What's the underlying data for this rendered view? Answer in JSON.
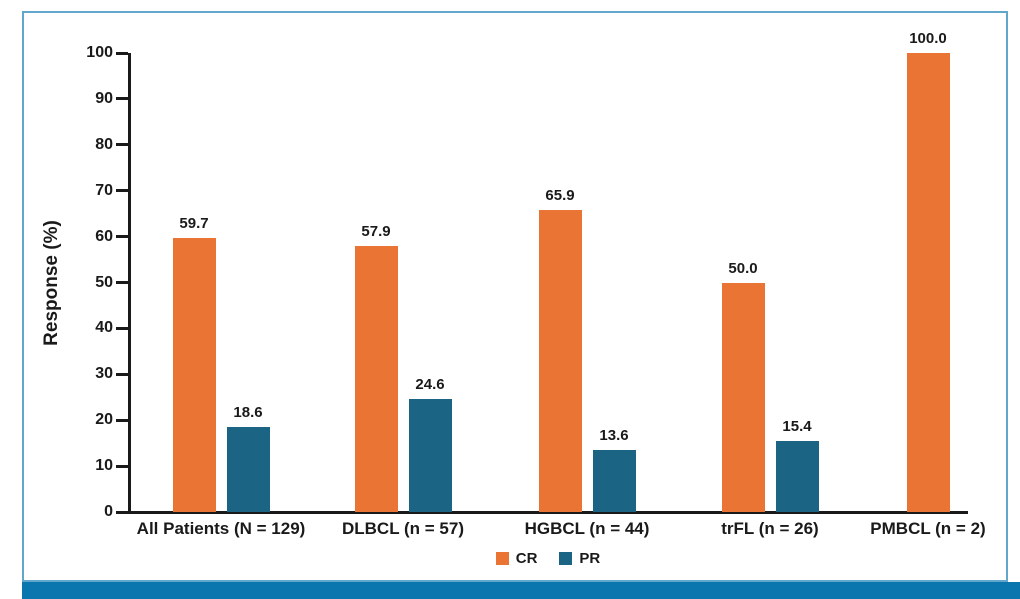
{
  "figure": {
    "background_color": "#FFFFFF",
    "border_color": "#63A6CC",
    "footer_bar_color": "#0B76AE",
    "axis_color": "#1A1A1A",
    "text_color": "#1A1A1A"
  },
  "chart_data": {
    "type": "bar",
    "title": "",
    "xlabel": "",
    "ylabel": "Response (%)",
    "ylim": [
      0,
      100
    ],
    "yticks": [
      0,
      10,
      20,
      30,
      40,
      50,
      60,
      70,
      80,
      90,
      100
    ],
    "grid": false,
    "legend_position": "bottom-center",
    "value_labels": true,
    "value_label_decimals": 1,
    "categories": [
      "All Patients (N = 129)",
      "DLBCL (n = 57)",
      "HGBCL (n = 44)",
      "trFL (n = 26)",
      "PMBCL (n = 2)"
    ],
    "series": [
      {
        "name": "CR",
        "color": "#E97433",
        "values": [
          59.7,
          57.9,
          65.9,
          50.0,
          100.0
        ]
      },
      {
        "name": "PR",
        "color": "#1C6483",
        "values": [
          18.6,
          24.6,
          13.6,
          15.4,
          null
        ]
      }
    ]
  }
}
